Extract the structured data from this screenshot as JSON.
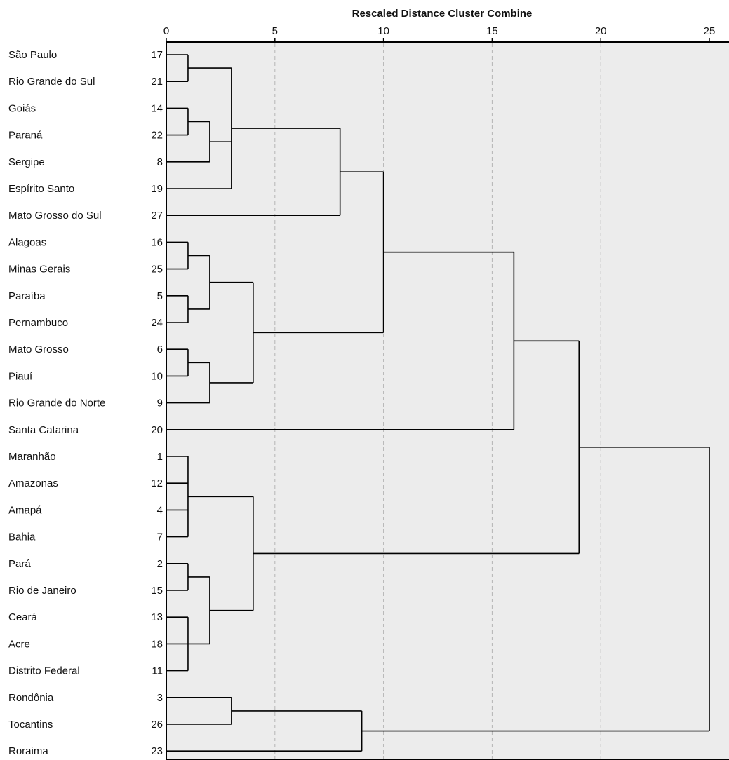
{
  "chart_data": {
    "type": "dendrogram",
    "title": "Rescaled Distance Cluster Combine",
    "xlim": [
      0,
      25
    ],
    "x_ticks": [
      0,
      5,
      10,
      15,
      20,
      25
    ],
    "grid": "dashed-vertical",
    "leaves": [
      {
        "label": "São Paulo",
        "id": "17"
      },
      {
        "label": "Rio Grande do Sul",
        "id": "21"
      },
      {
        "label": "Goiás",
        "id": "14"
      },
      {
        "label": "Paraná",
        "id": "22"
      },
      {
        "label": "Sergipe",
        "id": "8"
      },
      {
        "label": "Espírito Santo",
        "id": "19"
      },
      {
        "label": "Mato Grosso do Sul",
        "id": "27"
      },
      {
        "label": "Alagoas",
        "id": "16"
      },
      {
        "label": "Minas Gerais",
        "id": "25"
      },
      {
        "label": "Paraíba",
        "id": "5"
      },
      {
        "label": "Pernambuco",
        "id": "24"
      },
      {
        "label": "Mato Grosso",
        "id": "6"
      },
      {
        "label": "Piauí",
        "id": "10"
      },
      {
        "label": "Rio Grande do Norte",
        "id": "9"
      },
      {
        "label": "Santa Catarina",
        "id": "20"
      },
      {
        "label": "Maranhão",
        "id": "1"
      },
      {
        "label": "Amazonas",
        "id": "12"
      },
      {
        "label": "Amapá",
        "id": "4"
      },
      {
        "label": "Bahia",
        "id": "7"
      },
      {
        "label": "Pará",
        "id": "2"
      },
      {
        "label": "Rio de Janeiro",
        "id": "15"
      },
      {
        "label": "Ceará",
        "id": "13"
      },
      {
        "label": "Acre",
        "id": "18"
      },
      {
        "label": "Distrito Federal",
        "id": "11"
      },
      {
        "label": "Rondônia",
        "id": "3"
      },
      {
        "label": "Tocantins",
        "id": "26"
      },
      {
        "label": "Roraima",
        "id": "23"
      }
    ],
    "merges": [
      {
        "id": "A",
        "left": 0,
        "right": 1,
        "distance": 1
      },
      {
        "id": "B",
        "left": 2,
        "right": 3,
        "distance": 1
      },
      {
        "id": "C",
        "left": "B",
        "right": 4,
        "distance": 2
      },
      {
        "id": "D",
        "left": "A",
        "right": "C",
        "right2": 5,
        "distance": 3
      },
      {
        "id": "E",
        "left": "D",
        "right": 6,
        "distance": 8
      },
      {
        "id": "F",
        "left": 7,
        "right": 8,
        "distance": 1
      },
      {
        "id": "G",
        "left": 9,
        "right": 10,
        "distance": 1
      },
      {
        "id": "H",
        "left": "F",
        "right": "G",
        "distance": 2
      },
      {
        "id": "I",
        "left": 11,
        "right": 12,
        "distance": 1
      },
      {
        "id": "J",
        "left": "I",
        "right": 13,
        "distance": 2
      },
      {
        "id": "K",
        "left": "H",
        "right": "J",
        "distance": 4
      },
      {
        "id": "L",
        "left": "E",
        "right": "K",
        "distance": 10
      },
      {
        "id": "M",
        "left": "L",
        "right": 14,
        "distance": 16
      },
      {
        "id": "N",
        "left": 15,
        "right": 16,
        "right2": 17,
        "right3": 18,
        "distance": 1
      },
      {
        "id": "O",
        "left": 19,
        "right": 20,
        "distance": 1
      },
      {
        "id": "P",
        "left": 21,
        "right": 22,
        "right2": 23,
        "distance": 1
      },
      {
        "id": "Q",
        "left": "O",
        "right": "P",
        "distance": 2
      },
      {
        "id": "R",
        "left": "N",
        "right": "Q",
        "distance": 4
      },
      {
        "id": "S",
        "left": "M",
        "right": "R",
        "distance": 19
      },
      {
        "id": "T",
        "left": 24,
        "right": 25,
        "distance": 3
      },
      {
        "id": "U",
        "left": "T",
        "right": 26,
        "distance": 9
      },
      {
        "id": "V",
        "left": "S",
        "right": "U",
        "distance": 25
      }
    ]
  }
}
